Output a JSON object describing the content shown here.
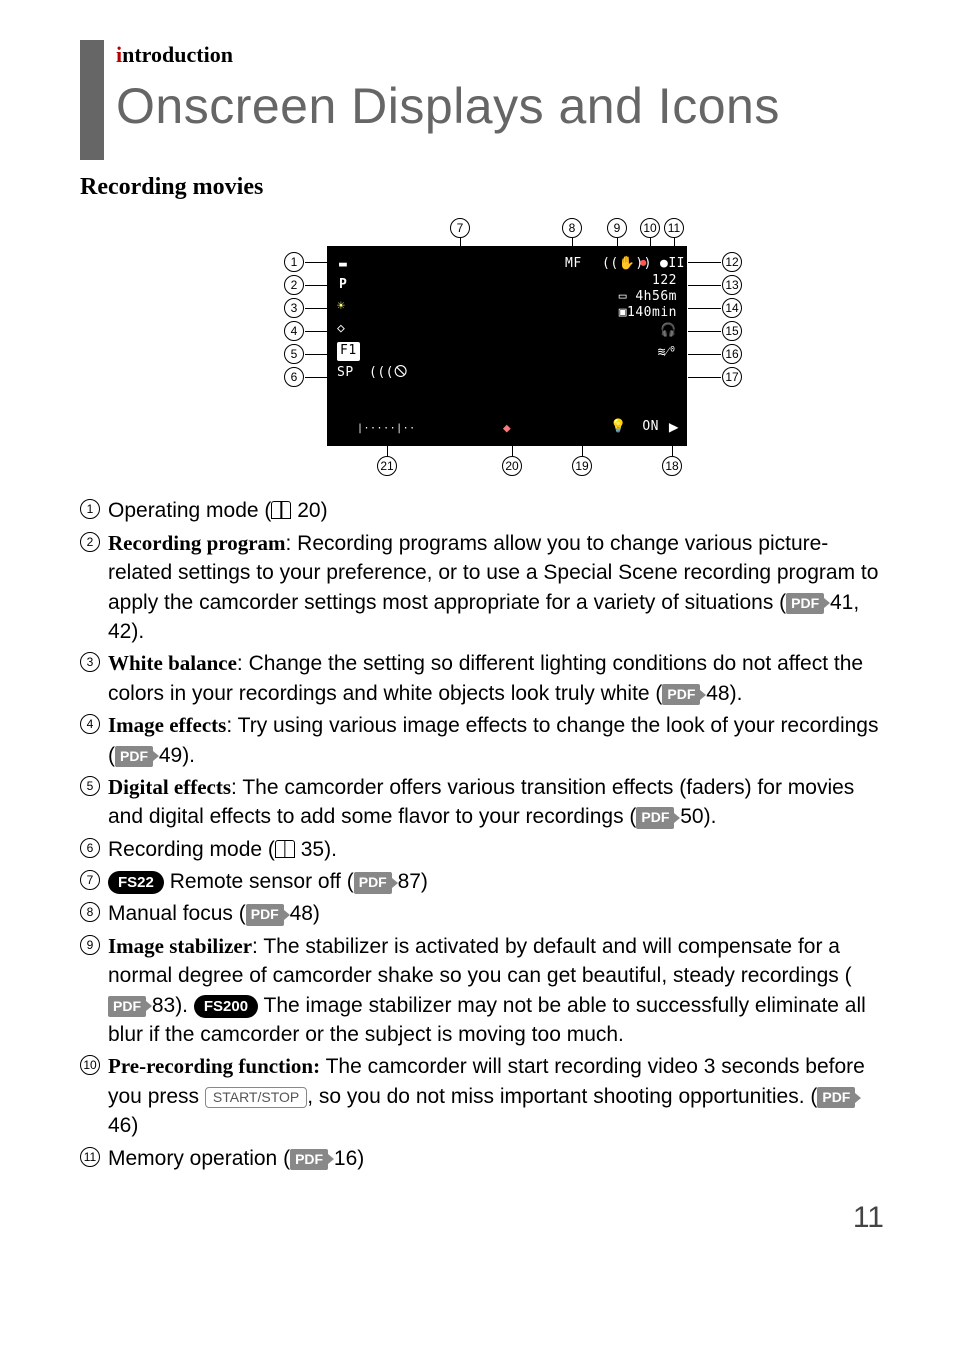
{
  "header": {
    "prefix_letter": "i",
    "rest": "ntroduction"
  },
  "title": "Onscreen Displays and Icons",
  "subtitle": "Recording movies",
  "lcd": {
    "mf": "MF",
    "p": "P",
    "count": "122",
    "time": "4h56m",
    "dur": "140min",
    "sp": "SP",
    "f1": "F1",
    "backlight": "ON"
  },
  "diagram_nums": [
    "1",
    "2",
    "3",
    "4",
    "5",
    "6",
    "7",
    "8",
    "9",
    "10",
    "11",
    "12",
    "13",
    "14",
    "15",
    "16",
    "17",
    "18",
    "19",
    "20",
    "21"
  ],
  "items": [
    {
      "n": "1",
      "text_plain": "Operating mode (",
      "book": true,
      "after": " 20)"
    },
    {
      "n": "2",
      "bold": "Recording program",
      "text": ": Recording programs allow you to change various picture-related settings to your preference, or to use a Special Scene recording program to apply the camcorder settings most appropriate for a variety of situations (",
      "pdf": true,
      "after": " 41, 42)."
    },
    {
      "n": "3",
      "bold": "White balance",
      "text": ": Change the setting so different lighting conditions do not affect the colors in your recordings and white objects look truly white (",
      "pdf": true,
      "after": " 48)."
    },
    {
      "n": "4",
      "bold": "Image effects",
      "text": ": Try using various image effects to change the look of your recordings (",
      "pdf": true,
      "after": " 49)."
    },
    {
      "n": "5",
      "bold": "Digital effects",
      "text": ": The camcorder offers various transition effects (faders) for movies and digital effects to add some flavor to your recordings (",
      "pdf": true,
      "after": " 50)."
    },
    {
      "n": "6",
      "text_plain": "Recording mode (",
      "book": true,
      "after": " 35)."
    },
    {
      "n": "7",
      "fs": "FS22",
      "text_plain_after_fs": "  Remote sensor off (",
      "pdf": true,
      "after": " 87)"
    },
    {
      "n": "8",
      "text_plain": "Manual focus (",
      "pdf": true,
      "after": " 48)"
    },
    {
      "n": "9",
      "bold": "Image stabilizer",
      "text": ": The stabilizer is activated by default and will compensate for a normal degree of camcorder shake so you can get beautiful, steady recordings (",
      "pdf": true,
      "mid": " 83). ",
      "fs2": "FS200",
      "post_fs2": "  The image stabilizer may not be able to successfully eliminate all blur if the camcorder or the subject is moving too much."
    },
    {
      "n": "10",
      "bold": "Pre-recording function:",
      "text": " The camcorder will start recording video 3 seconds before you press ",
      "key": "START/STOP",
      "post_key": ", so you do not miss important shooting opportunities. (",
      "pdf": true,
      "after": " 46)"
    },
    {
      "n": "11",
      "text_plain": "Memory operation (",
      "pdf": true,
      "after": " 16)"
    }
  ],
  "page_number": "11"
}
